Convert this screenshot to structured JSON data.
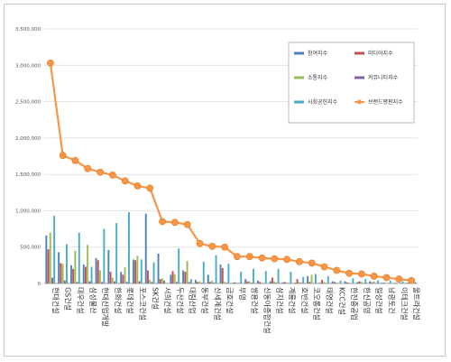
{
  "chart_data": {
    "type": "bar",
    "ylim": [
      0,
      3500000
    ],
    "yticks": [
      0,
      500000,
      1000000,
      1500000,
      2000000,
      2500000,
      3000000,
      3500000
    ],
    "ytick_labels": [
      "0",
      "500,000",
      "1,000,000",
      "1,500,000",
      "2,000,000",
      "2,500,000",
      "3,000,000",
      "3,500,000"
    ],
    "grid": true,
    "legend_position": "top-right",
    "categories": [
      "현대건설",
      "GS건설",
      "대우건설",
      "삼성물산",
      "현대산업개발",
      "한화건설",
      "롯데건설",
      "포스코건설",
      "SK건설",
      "서희건설",
      "두산건설",
      "대림산업",
      "동부건설",
      "신세계건설",
      "금호건설",
      "부영",
      "쌍용건설",
      "신동아종합건설",
      "삼지건설",
      "계룡건설",
      "호반건설",
      "코오롱건설",
      "태영건설",
      "KCC건설",
      "한진중공업",
      "한신공영",
      "일성건설",
      "남광토건",
      "이테크건설",
      "울트라건설"
    ],
    "series": [
      {
        "name": "참여지수",
        "type": "bar",
        "color": "#4f81bd",
        "values": [
          660000,
          430000,
          250000,
          260000,
          350000,
          460000,
          160000,
          330000,
          960000,
          410000,
          120000,
          180000,
          50000,
          120000,
          260000,
          10000,
          60000,
          40000,
          30000,
          15000,
          10000,
          100000,
          10000,
          30000,
          30000,
          20000,
          30000,
          10000,
          10000,
          10000
        ]
      },
      {
        "name": "미디어지수",
        "type": "bar",
        "color": "#c0504d",
        "values": [
          470000,
          280000,
          200000,
          230000,
          320000,
          160000,
          120000,
          320000,
          180000,
          60000,
          170000,
          160000,
          20000,
          20000,
          210000,
          15000,
          30000,
          20000,
          80000,
          20000,
          60000,
          20000,
          50000,
          20000,
          15000,
          30000,
          15000,
          10000,
          5000,
          10000
        ]
      },
      {
        "name": "소통지수",
        "type": "bar",
        "color": "#9bbb59",
        "values": [
          700000,
          270000,
          450000,
          530000,
          180000,
          80000,
          220000,
          380000,
          50000,
          70000,
          130000,
          310000,
          30000,
          40000,
          20000,
          10000,
          30000,
          10000,
          30000,
          10000,
          20000,
          120000,
          20000,
          10000,
          10000,
          20000,
          30000,
          5000,
          5000,
          5000
        ]
      },
      {
        "name": "커뮤니티지수",
        "type": "bar",
        "color": "#8064a2",
        "values": [
          80000,
          40000,
          20000,
          30000,
          20000,
          30000,
          20000,
          30000,
          20000,
          40000,
          20000,
          20000,
          10000,
          10000,
          10000,
          5000,
          10000,
          5000,
          10000,
          5000,
          10000,
          5000,
          5000,
          5000,
          5000,
          5000,
          5000,
          5000,
          5000,
          5000
        ]
      },
      {
        "name": "사회공헌지수",
        "type": "bar",
        "color": "#4bacc6",
        "values": [
          930000,
          540000,
          700000,
          230000,
          750000,
          830000,
          980000,
          330000,
          290000,
          0,
          480000,
          60000,
          300000,
          390000,
          270000,
          160000,
          200000,
          170000,
          200000,
          160000,
          90000,
          130000,
          100000,
          40000,
          70000,
          60000,
          40000,
          40000,
          30000,
          20000
        ]
      },
      {
        "name": "브랜드평판지수",
        "type": "line",
        "color": "#f79646",
        "values": [
          3030000,
          1760000,
          1690000,
          1580000,
          1530000,
          1490000,
          1410000,
          1340000,
          1310000,
          850000,
          840000,
          810000,
          550000,
          510000,
          500000,
          370000,
          370000,
          350000,
          340000,
          330000,
          300000,
          280000,
          230000,
          180000,
          140000,
          130000,
          100000,
          80000,
          60000,
          40000
        ]
      }
    ]
  }
}
